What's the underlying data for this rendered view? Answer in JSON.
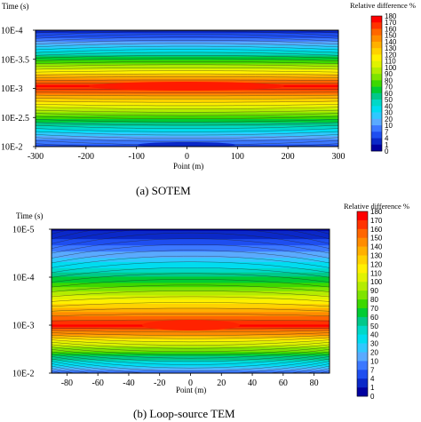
{
  "chart_data": [
    {
      "type": "heatmap",
      "title": "",
      "caption": "(a)  SOTEM",
      "ylabel": "Time (s)",
      "xlabel": "Point (m)",
      "xlim": [
        -300,
        300
      ],
      "x_ticks": [
        -300,
        -200,
        -100,
        0,
        100,
        200,
        300
      ],
      "y_ticks": [
        "10E-4",
        "10E-3.5",
        "10E-3",
        "10E-2.5",
        "10E-2"
      ],
      "colorbar_title": "Relative difference %",
      "colorbar_levels": [
        180,
        170,
        160,
        150,
        140,
        130,
        120,
        110,
        100,
        90,
        80,
        70,
        60,
        50,
        40,
        30,
        20,
        10,
        7,
        4,
        1,
        0
      ],
      "peak": {
        "x": 0,
        "y": "10E-3",
        "value": 180
      }
    },
    {
      "type": "heatmap",
      "title": "",
      "caption": "(b) Loop-source TEM",
      "ylabel": "Time (s)",
      "xlabel": "Point (m)",
      "xlim": [
        -90,
        90
      ],
      "x_ticks": [
        -80,
        -60,
        -40,
        -20,
        0,
        20,
        40,
        60,
        80
      ],
      "y_ticks": [
        "10E-5",
        "10E-4",
        "10E-3",
        "10E-2"
      ],
      "colorbar_title": "Relative difference %",
      "colorbar_levels": [
        180,
        170,
        160,
        150,
        140,
        130,
        120,
        110,
        100,
        90,
        80,
        70,
        60,
        50,
        40,
        30,
        20,
        10,
        7,
        4,
        1,
        0
      ],
      "peak": {
        "x": 0,
        "y": "10E-3",
        "value": 180
      }
    }
  ],
  "colors": {
    "palette": [
      "#ff0000",
      "#ff3300",
      "#ff6600",
      "#ff8c00",
      "#ffb000",
      "#ffd200",
      "#fff000",
      "#e0f200",
      "#b4ec00",
      "#7ee400",
      "#3cd800",
      "#00cc33",
      "#00c88a",
      "#00d8c8",
      "#00dcf0",
      "#30c8ff",
      "#5aaaff",
      "#3c78ff",
      "#1e4ef0",
      "#0a28c8",
      "#0000a0"
    ]
  }
}
